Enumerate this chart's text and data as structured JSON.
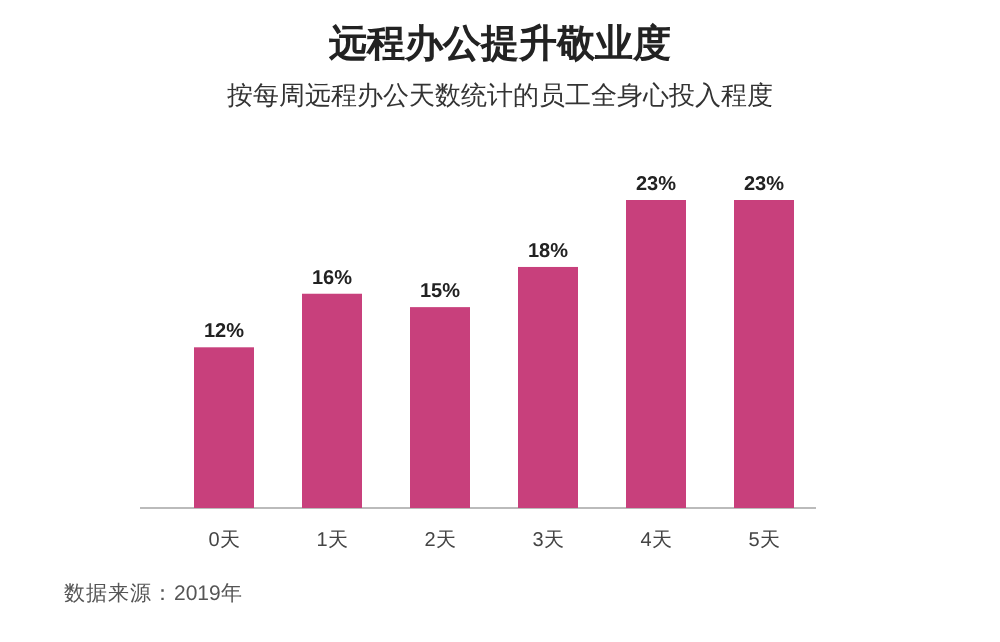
{
  "chart_data": {
    "type": "bar",
    "title": "远程办公提升敬业度",
    "subtitle": "按每周远程办公天数统计的员工全身心投入程度",
    "categories": [
      "0天",
      "1天",
      "2天",
      "3天",
      "4天",
      "5天"
    ],
    "values": [
      12,
      16,
      15,
      18,
      23,
      23
    ],
    "value_labels": [
      "12%",
      "16%",
      "15%",
      "18%",
      "23%",
      "23%"
    ],
    "color": "#c8407c",
    "annotations": [
      "数据来源：2019年"
    ]
  }
}
